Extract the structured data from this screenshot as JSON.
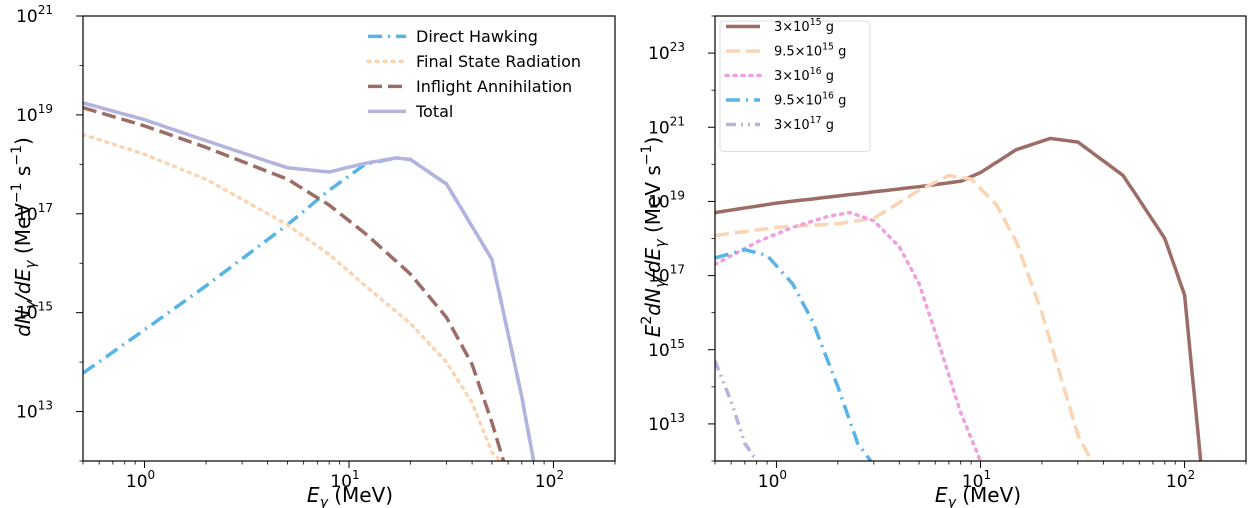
{
  "chart_data": [
    {
      "type": "line",
      "xlabel_main": "E",
      "xlabel_sub": "γ",
      "xlabel_unit": " (MeV)",
      "ylabel_parts": [
        "dN",
        "γ",
        "/dE",
        "γ",
        " (MeV",
        "−1",
        " s",
        "−1",
        ")"
      ],
      "xscale": "log",
      "yscale": "log",
      "xlim": [
        0.5,
        200
      ],
      "ylim": [
        1000000000000.0,
        1e+21
      ],
      "xticks": [
        {
          "value": 1,
          "base": "10",
          "exp": "0"
        },
        {
          "value": 10,
          "base": "10",
          "exp": "1"
        },
        {
          "value": 100,
          "base": "10",
          "exp": "2"
        }
      ],
      "yticks": [
        {
          "value": 10000000000000.0,
          "base": "10",
          "exp": "13"
        },
        {
          "value": 1000000000000000.0,
          "base": "10",
          "exp": "15"
        },
        {
          "value": 1e+17,
          "base": "10",
          "exp": "17"
        },
        {
          "value": 1e+19,
          "base": "10",
          "exp": "19"
        },
        {
          "value": 1e+21,
          "base": "10",
          "exp": "21"
        }
      ],
      "legend_position": "top-right",
      "series": [
        {
          "name": "Direct Hawking",
          "color": "#56B4E9",
          "dash": "dashdot",
          "x": [
            0.5,
            1,
            2,
            5,
            8,
            12,
            17,
            20,
            30,
            50,
            70,
            80
          ],
          "y": [
            60000000000000.0,
            450000000000000.0,
            3500000000000000.0,
            6e+16,
            3e+17,
            1e+18,
            1.35e+18,
            1.25e+18,
            4e+17,
            1.2e+16,
            20000000000000.0,
            1000000000000.0
          ]
        },
        {
          "name": "Final State Radiation",
          "color": "#FAD4B3",
          "dash": "dotted",
          "x": [
            0.5,
            1,
            2,
            5,
            8,
            12,
            20,
            30,
            40,
            50,
            55
          ],
          "y": [
            4e+18,
            1.6e+18,
            5e+17,
            6e+16,
            1.5e+16,
            3500000000000000.0,
            600000000000000.0,
            100000000000000.0,
            15000000000000.0,
            1500000000000.0,
            1000000000000.0
          ]
        },
        {
          "name": "Inflight Annihilation",
          "color": "#9C6D67",
          "dash": "dashed",
          "x": [
            0.5,
            1,
            2,
            5,
            8,
            12,
            20,
            30,
            40,
            50,
            57
          ],
          "y": [
            1.4e+19,
            6e+18,
            2.2e+18,
            5e+17,
            1.5e+17,
            4e+16,
            6000000000000000.0,
            800000000000000.0,
            90000000000000.0,
            6000000000000.0,
            1000000000000.0
          ]
        },
        {
          "name": "Total",
          "color": "#B3B3DD",
          "dash": "solid",
          "x": [
            0.5,
            1,
            2,
            5,
            8,
            12,
            17,
            20,
            30,
            50,
            70,
            80
          ],
          "y": [
            1.75e+19,
            8e+18,
            3e+18,
            8.5e+17,
            7e+17,
            1.05e+18,
            1.35e+18,
            1.25e+18,
            4e+17,
            1.2e+16,
            20000000000000.0,
            1000000000000.0
          ]
        }
      ]
    },
    {
      "type": "line",
      "xlabel_main": "E",
      "xlabel_sub": "γ",
      "xlabel_unit": " (MeV)",
      "ylabel_parts": [
        "E",
        "2",
        "dN",
        "γ",
        "/dE",
        "γ",
        " (MeV s",
        "−1",
        ")"
      ],
      "xscale": "log",
      "yscale": "log",
      "xlim": [
        0.5,
        200
      ],
      "ylim": [
        1000000000000.0,
        1e+24
      ],
      "xticks": [
        {
          "value": 1,
          "base": "10",
          "exp": "0"
        },
        {
          "value": 10,
          "base": "10",
          "exp": "1"
        },
        {
          "value": 100,
          "base": "10",
          "exp": "2"
        }
      ],
      "yticks": [
        {
          "value": 10000000000000.0,
          "base": "10",
          "exp": "13"
        },
        {
          "value": 1000000000000000.0,
          "base": "10",
          "exp": "15"
        },
        {
          "value": 1e+17,
          "base": "10",
          "exp": "17"
        },
        {
          "value": 1e+19,
          "base": "10",
          "exp": "19"
        },
        {
          "value": 1e+21,
          "base": "10",
          "exp": "21"
        },
        {
          "value": 1e+23,
          "base": "10",
          "exp": "23"
        }
      ],
      "legend_position": "top-left",
      "series": [
        {
          "name": "3×10¹⁵ g",
          "label_base": "3×10",
          "label_exp": "15",
          "label_unit": " g",
          "color": "#9C6D67",
          "dash": "solid",
          "x": [
            0.5,
            1,
            2,
            5,
            8,
            10,
            15,
            22,
            30,
            50,
            80,
            100,
            120
          ],
          "y": [
            5e+18,
            9e+18,
            1.4e+19,
            2.5e+19,
            3.5e+19,
            6e+19,
            2.5e+20,
            5e+20,
            4e+20,
            5e+19,
            1e+18,
            3e+16,
            1000000000000.0
          ]
        },
        {
          "name": "9.5×10¹⁵ g",
          "label_base": "9.5×10",
          "label_exp": "15",
          "label_unit": " g",
          "color": "#FAD4B3",
          "dash": "dashed",
          "x": [
            0.5,
            1,
            2,
            3,
            5,
            7,
            9,
            12,
            15,
            20,
            30,
            35
          ],
          "y": [
            1.2e+18,
            2e+18,
            2.5e+18,
            3.5e+18,
            2e+19,
            5e+19,
            4e+19,
            8e+18,
            8e+17,
            1e+16,
            5000000000000.0,
            1000000000000.0
          ]
        },
        {
          "name": "3×10¹⁶ g",
          "label_base": "3×10",
          "label_exp": "16",
          "label_unit": " g",
          "color": "#EF9FE0",
          "dash": "dotted",
          "x": [
            0.5,
            0.8,
            1.2,
            1.8,
            2.3,
            3,
            4,
            5,
            6,
            8,
            10
          ],
          "y": [
            2e+17,
            8e+17,
            2e+18,
            4e+18,
            5e+18,
            3e+18,
            6e+17,
            6e+16,
            3000000000000000.0,
            20000000000000.0,
            1000000000000.0
          ]
        },
        {
          "name": "9.5×10¹⁶ g",
          "label_base": "9.5×10",
          "label_exp": "16",
          "label_unit": " g",
          "color": "#56B4E9",
          "dash": "dashdot",
          "x": [
            0.5,
            0.7,
            0.9,
            1.2,
            1.5,
            2,
            2.5,
            2.9
          ],
          "y": [
            3e+17,
            5e+17,
            3.5e+17,
            6e+16,
            6000000000000000.0,
            100000000000000.0,
            3000000000000.0,
            1000000000000.0
          ]
        },
        {
          "name": "3×10¹⁷ g",
          "label_base": "3×10",
          "label_exp": "17",
          "label_unit": " g",
          "color": "#B3B3DD",
          "dash": "dashdotdot",
          "x": [
            0.5,
            0.6,
            0.7,
            0.8
          ],
          "y": [
            500000000000000.0,
            40000000000000.0,
            3000000000000.0,
            1000000000000.0
          ]
        }
      ]
    }
  ]
}
